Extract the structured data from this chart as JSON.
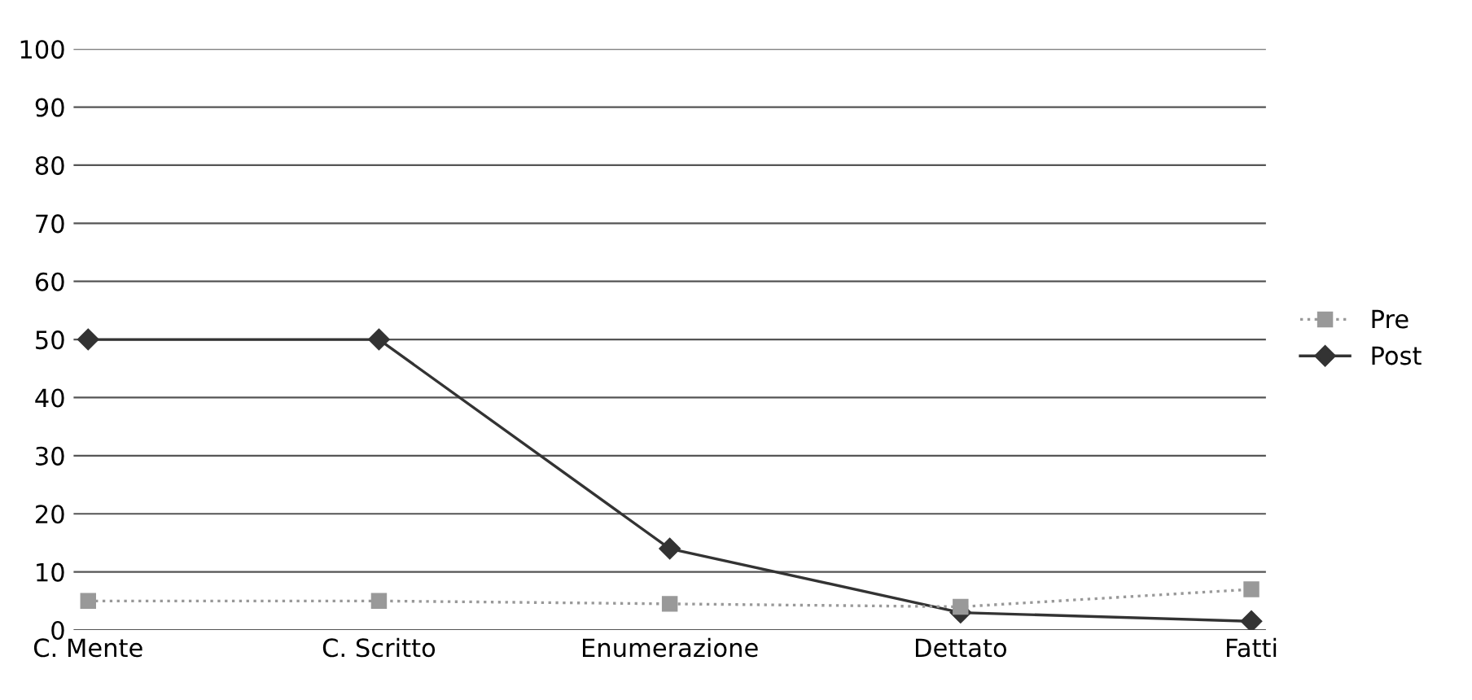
{
  "chart_data": {
    "type": "line",
    "categories": [
      "C. Mente",
      "C. Scritto",
      "Enumerazione",
      "Dettato",
      "Fatti"
    ],
    "series": [
      {
        "name": "Pre",
        "color": "#999999",
        "values": [
          5,
          5,
          4.5,
          4,
          7
        ],
        "marker": "square",
        "line_style": "dotted"
      },
      {
        "name": "Post",
        "color": "#333333",
        "values": [
          50,
          50,
          14,
          3,
          1.5
        ],
        "marker": "diamond",
        "line_style": "solid"
      }
    ],
    "ylim": [
      0,
      100
    ],
    "yticks": [
      0,
      10,
      20,
      30,
      40,
      50,
      60,
      70,
      80,
      90,
      100
    ],
    "grid": "y",
    "legend": "right"
  }
}
